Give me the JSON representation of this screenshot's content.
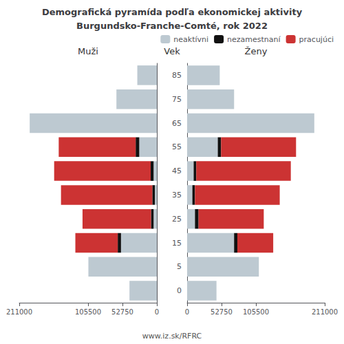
{
  "chart_data": [
    {
      "type": "bar",
      "title": "Demografická pyramída podľa ekonomickej aktivity",
      "subtitle": "Burgundsko-Franche-Comté, rok 2022",
      "annotations": [
        "www.iz.sk/RFRC"
      ],
      "xlabel": "Muži",
      "orientation": "horizontal",
      "stacked": true,
      "grid": false,
      "tick_labels": "x",
      "categories": [
        "0",
        "5",
        "15",
        "25",
        "35",
        "45",
        "55",
        "65",
        "75",
        "85"
      ],
      "xlim": [
        211000,
        0
      ],
      "xticks": [
        211000,
        105500,
        52750,
        0
      ],
      "series": [
        {
          "name": "neaktívni",
          "color": "#bdc9d1",
          "values": [
            42000,
            105000,
            55000,
            5000,
            3000,
            5000,
            27000,
            195000,
            62000,
            30000
          ]
        },
        {
          "name": "nezamestnaní",
          "color": "#111111",
          "values": [
            0,
            0,
            5000,
            4000,
            4000,
            4500,
            5500,
            0,
            0,
            0
          ]
        },
        {
          "name": "pracujúci",
          "color": "#cc3333",
          "values": [
            0,
            0,
            65000,
            105000,
            140000,
            148000,
            118000,
            0,
            0,
            0
          ]
        }
      ]
    },
    {
      "type": "bar",
      "xlabel": "Ženy",
      "ylabel": "Vek",
      "orientation": "horizontal",
      "stacked": true,
      "grid": false,
      "legend": "upper right",
      "categories": [
        "0",
        "5",
        "15",
        "25",
        "35",
        "45",
        "55",
        "65",
        "75",
        "85"
      ],
      "xlim": [
        0,
        211000
      ],
      "xticks": [
        0,
        52750,
        105500,
        211000
      ],
      "series": [
        {
          "name": "neaktívni",
          "color": "#bdc9d1",
          "values": [
            45000,
            110000,
            72000,
            12000,
            8000,
            10000,
            47000,
            195000,
            72000,
            50000
          ]
        },
        {
          "name": "nezamestnaní",
          "color": "#111111",
          "values": [
            0,
            0,
            5000,
            5500,
            4000,
            4000,
            5000,
            0,
            0,
            0
          ]
        },
        {
          "name": "pracujúci",
          "color": "#cc3333",
          "values": [
            0,
            0,
            55000,
            100000,
            130000,
            145000,
            115000,
            0,
            0,
            0
          ]
        }
      ]
    }
  ]
}
